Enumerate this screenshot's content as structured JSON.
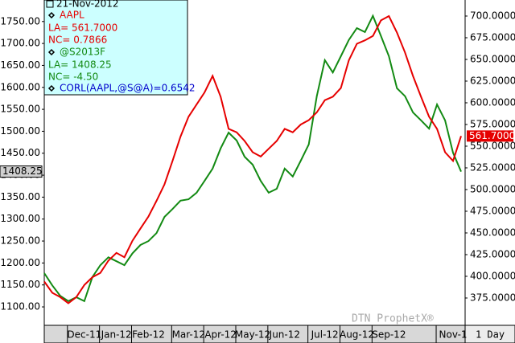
{
  "chart_data": {
    "type": "line",
    "categories": [
      null,
      null,
      null,
      null,
      null,
      "Dec-11",
      null,
      null,
      null,
      "Jan-12",
      null,
      null,
      null,
      "Feb-12",
      null,
      null,
      null,
      null,
      "Mar-12",
      null,
      null,
      null,
      "Apr-12",
      null,
      null,
      null,
      "May-12",
      null,
      null,
      null,
      "Jun-12",
      null,
      null,
      null,
      null,
      "Jul-12",
      null,
      null,
      null,
      "Aug-12",
      null,
      null,
      null,
      "Sep-12",
      null,
      null,
      null,
      null,
      null,
      null,
      null,
      "Nov-1",
      null
    ],
    "series": [
      {
        "name": "@S2013F",
        "color": "#138a13",
        "axis": "y",
        "values": [
          1177,
          1149,
          1125,
          1113,
          1122,
          1113,
          1168,
          1195,
          1213,
          1204,
          1195,
          1222,
          1241,
          1250,
          1268,
          1305,
          1323,
          1342,
          1345,
          1360,
          1387,
          1415,
          1461,
          1497,
          1479,
          1442,
          1424,
          1387,
          1360,
          1369,
          1415,
          1397,
          1433,
          1470,
          1580,
          1662,
          1634,
          1671,
          1708,
          1735,
          1726,
          1763,
          1717,
          1671,
          1598,
          1580,
          1543,
          1525,
          1506,
          1561,
          1525,
          1451,
          1408.25
        ]
      },
      {
        "name": "AAPL",
        "color": "#e60000",
        "axis": "y2",
        "values": [
          394,
          381,
          376,
          369,
          376,
          390,
          399,
          404,
          418,
          427,
          422,
          441,
          455,
          469,
          487,
          506,
          533,
          561,
          584,
          598,
          612,
          631,
          607,
          570,
          566,
          556,
          543,
          538,
          547,
          556,
          570,
          566,
          575,
          580,
          589,
          603,
          607,
          617,
          649,
          668,
          672,
          677,
          695,
          700,
          681,
          658,
          631,
          607,
          584,
          570,
          543,
          533,
          561.7
        ],
        "value_labels": [
          null,
          null,
          null,
          null,
          null,
          null,
          null,
          null,
          null,
          null,
          null,
          null,
          null,
          null,
          null,
          null,
          null,
          null,
          null,
          null,
          null,
          null,
          null,
          null,
          null,
          null,
          null,
          null,
          null,
          null,
          null,
          null,
          null,
          null,
          null,
          null,
          null,
          null,
          null,
          null,
          null,
          null,
          null,
          null,
          null,
          null,
          null,
          null,
          null,
          null,
          null,
          null,
          "561.7000"
        ]
      }
    ],
    "ylim": [
      1058,
      1799
    ],
    "yticks": [
      {
        "value": 1100,
        "label": "1100.00"
      },
      {
        "value": 1150,
        "label": "1150.00"
      },
      {
        "value": 1200,
        "label": "1200.00"
      },
      {
        "value": 1250,
        "label": "1250.00"
      },
      {
        "value": 1300,
        "label": "1300.00"
      },
      {
        "value": 1350,
        "label": "1350.00"
      },
      {
        "value": 1400,
        "label": "1400.00"
      },
      {
        "value": 1450,
        "label": "1450.00"
      },
      {
        "value": 1500,
        "label": "1500.00"
      },
      {
        "value": 1550,
        "label": "1550.00"
      },
      {
        "value": 1600,
        "label": "1600.00"
      },
      {
        "value": 1650,
        "label": "1650.00"
      },
      {
        "value": 1700,
        "label": "1700.00"
      },
      {
        "value": 1750,
        "label": "1750.00"
      }
    ],
    "y2lim": [
      343.5,
      718.5
    ],
    "y2ticks": [
      {
        "value": 375,
        "label": "375.0000"
      },
      {
        "value": 400,
        "label": "400.0000"
      },
      {
        "value": 425,
        "label": "425.0000"
      },
      {
        "value": 450,
        "label": "450.0000"
      },
      {
        "value": 475,
        "label": "475.0000"
      },
      {
        "value": 500,
        "label": "500.0000"
      },
      {
        "value": 525,
        "label": "525.0000"
      },
      {
        "value": 550,
        "label": "550.0000"
      },
      {
        "value": 575,
        "label": "575.0000"
      },
      {
        "value": 600,
        "label": "600.0000"
      },
      {
        "value": 625,
        "label": "625.0000"
      },
      {
        "value": 650,
        "label": "650.0000"
      },
      {
        "value": 675,
        "label": "675.0000"
      },
      {
        "value": 700,
        "label": "700.0000"
      }
    ],
    "grid": false,
    "info_box": {
      "date": "21-Nov-2012",
      "lines": [
        [
          "LA= 1408.25",
          "NC= -4.50"
        ],
        [
          "LA= 561.7000",
          "NC= 0.7866"
        ]
      ],
      "correlation": "CORL(AAPL,@S@A)=0.6542"
    },
    "watermark": "DTN ProphetX®",
    "period": "1 Day"
  }
}
